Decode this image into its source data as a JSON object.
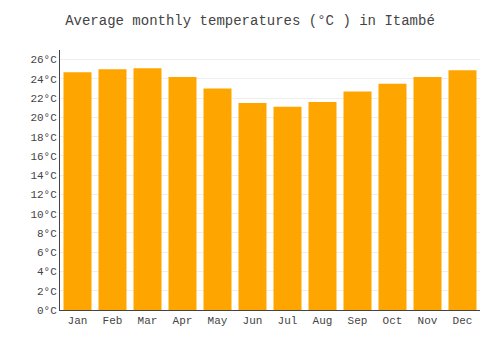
{
  "chart_data": {
    "type": "bar",
    "title": "Average monthly temperatures (°C ) in Itambé",
    "categories": [
      "Jan",
      "Feb",
      "Mar",
      "Apr",
      "May",
      "Jun",
      "Jul",
      "Aug",
      "Sep",
      "Oct",
      "Nov",
      "Dec"
    ],
    "values": [
      24.7,
      25.0,
      25.1,
      24.2,
      23.0,
      21.5,
      21.1,
      21.6,
      22.7,
      23.5,
      24.2,
      24.9
    ],
    "color": "#FFA500",
    "ylim": [
      0,
      27
    ],
    "yticks": [
      {
        "value": 0,
        "label": "0°C"
      },
      {
        "value": 2,
        "label": "2°C"
      },
      {
        "value": 4,
        "label": "4°C"
      },
      {
        "value": 6,
        "label": "6°C"
      },
      {
        "value": 8,
        "label": "8°C"
      },
      {
        "value": 10,
        "label": "10°C"
      },
      {
        "value": 12,
        "label": "12°C"
      },
      {
        "value": 14,
        "label": "14°C"
      },
      {
        "value": 16,
        "label": "16°C"
      },
      {
        "value": 18,
        "label": "18°C"
      },
      {
        "value": 20,
        "label": "20°C"
      },
      {
        "value": 22,
        "label": "22°C"
      },
      {
        "value": 24,
        "label": "24°C"
      },
      {
        "value": 26,
        "label": "26°C"
      }
    ],
    "grid": true
  }
}
